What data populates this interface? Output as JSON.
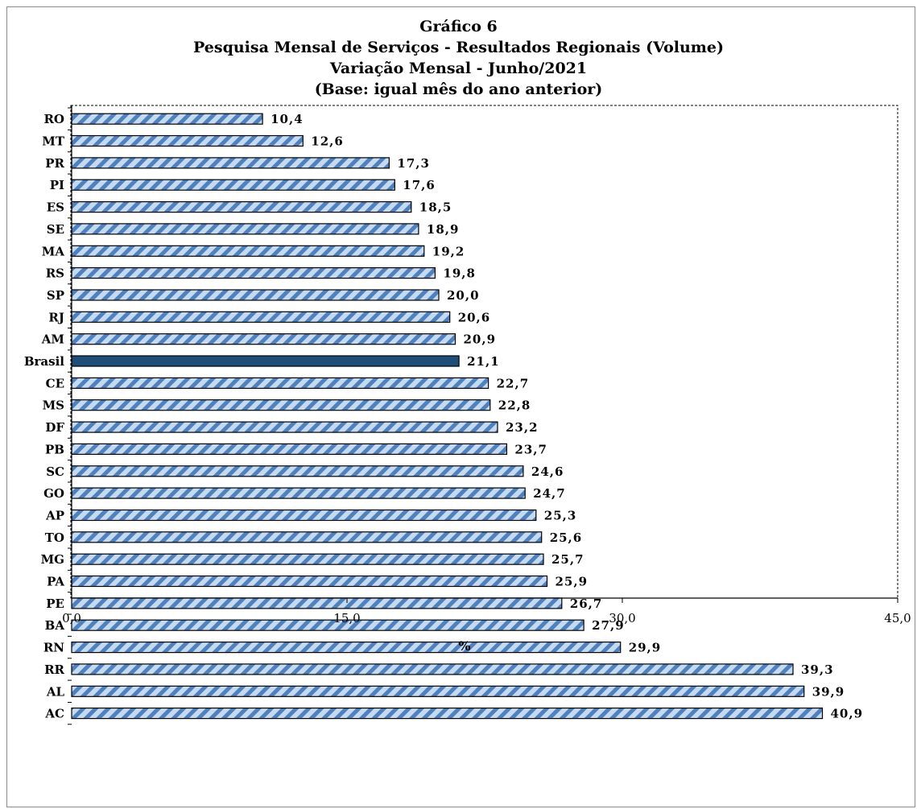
{
  "chart_data": {
    "type": "bar",
    "orientation": "horizontal",
    "title_lines": [
      "Gráfico 6",
      "Pesquisa  Mensal de Serviços - Resultados Regionais (Volume)",
      "Variação Mensal - Junho/2021",
      "(Base: igual mês do ano anterior)"
    ],
    "xlabel": "%",
    "ylabel": "",
    "xlim": [
      0,
      45
    ],
    "xticks": [
      0,
      15,
      30,
      45
    ],
    "xtick_labels": [
      "0,0",
      "15,0",
      "30,0",
      "45,0"
    ],
    "grid": false,
    "legend": "none",
    "categories": [
      "RO",
      "MT",
      "PR",
      "PI",
      "ES",
      "SE",
      "MA",
      "RS",
      "SP",
      "RJ",
      "AM",
      "Brasil",
      "CE",
      "MS",
      "DF",
      "PB",
      "SC",
      "GO",
      "AP",
      "TO",
      "MG",
      "PA",
      "PE",
      "BA",
      "RN",
      "RR",
      "AL",
      "AC"
    ],
    "values": [
      10.4,
      12.6,
      17.3,
      17.6,
      18.5,
      18.9,
      19.2,
      19.8,
      20.0,
      20.6,
      20.9,
      21.1,
      22.7,
      22.8,
      23.2,
      23.7,
      24.6,
      24.7,
      25.3,
      25.6,
      25.7,
      25.9,
      26.7,
      27.9,
      29.9,
      39.3,
      39.9,
      40.9
    ],
    "value_labels": [
      "10,4",
      "12,6",
      "17,3",
      "17,6",
      "18,5",
      "18,9",
      "19,2",
      "19,8",
      "20,0",
      "20,6",
      "20,9",
      "21,1",
      "22,7",
      "22,8",
      "23,2",
      "23,7",
      "24,6",
      "24,7",
      "25,3",
      "25,6",
      "25,7",
      "25,9",
      "26,7",
      "27,9",
      "29,9",
      "39,3",
      "39,9",
      "40,9"
    ],
    "highlight_category": "Brasil",
    "colors": {
      "bar_fill_light": "#c5d9f1",
      "bar_stripe": "#4f81bd",
      "highlight_fill": "#1f4e79",
      "bar_border": "#000000"
    }
  }
}
